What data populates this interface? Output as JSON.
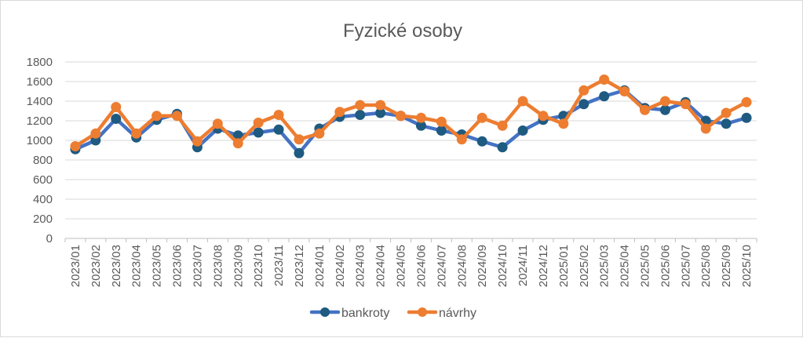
{
  "chart_data": {
    "type": "line",
    "title": "Fyzické osoby",
    "xlabel": "",
    "ylabel": "",
    "ylim": [
      0,
      1800
    ],
    "yticks": [
      0,
      200,
      400,
      600,
      800,
      1000,
      1200,
      1400,
      1600,
      1800
    ],
    "grid": true,
    "legend": "bottom",
    "categories": [
      "2023/01",
      "2023/02",
      "2023/03",
      "2023/04",
      "2023/05",
      "2023/06",
      "2023/07",
      "2023/08",
      "2023/09",
      "2023/10",
      "2023/11",
      "2023/12",
      "2024/01",
      "2024/02",
      "2024/03",
      "2024/04",
      "2024/05",
      "2024/06",
      "2024/07",
      "2024/08",
      "2024/09",
      "2024/10",
      "2024/11",
      "2024/12",
      "2025/01",
      "2025/02",
      "2025/03",
      "2025/04",
      "2025/05",
      "2025/06",
      "2025/07",
      "2025/08",
      "2025/09",
      "2025/10"
    ],
    "series": [
      {
        "name": "bankroty",
        "line_color": "#4472c4",
        "marker_color": "#1f5a80",
        "values": [
          910,
          1000,
          1220,
          1030,
          1210,
          1270,
          930,
          1120,
          1050,
          1080,
          1110,
          870,
          1120,
          1240,
          1260,
          1280,
          1250,
          1150,
          1100,
          1060,
          990,
          930,
          1100,
          1210,
          1250,
          1370,
          1450,
          1510,
          1330,
          1310,
          1390,
          1200,
          1170,
          1230
        ]
      },
      {
        "name": "návrhy",
        "line_color": "#ed7d31",
        "marker_color": "#ed7d31",
        "values": [
          940,
          1070,
          1340,
          1070,
          1250,
          1250,
          990,
          1170,
          970,
          1180,
          1260,
          1010,
          1070,
          1290,
          1360,
          1360,
          1250,
          1230,
          1190,
          1010,
          1230,
          1150,
          1400,
          1250,
          1170,
          1510,
          1620,
          1500,
          1310,
          1400,
          1370,
          1120,
          1280,
          1390
        ]
      }
    ]
  }
}
